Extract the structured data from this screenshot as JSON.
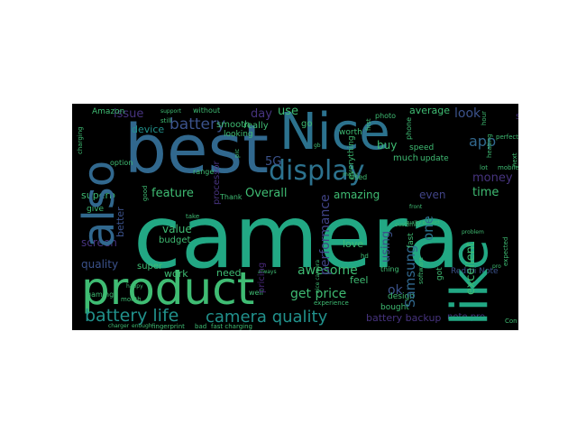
{
  "words": {
    "camera": "camera",
    "best": "best",
    "nice": "Nice",
    "like": "like",
    "product": "product",
    "also": "also",
    "display": "display",
    "battery_life": "battery life",
    "camera_quality": "camera quality",
    "battery": "battery",
    "performance": "performance",
    "awesome": "awesome",
    "get_price": "get price",
    "samsung": "Samsung",
    "excellent": "excellent",
    "money": "money",
    "time": "time",
    "app": "app",
    "look": "look",
    "feature": "feature",
    "overall": "Overall",
    "five_g": "5G",
    "value": "value",
    "quality": "quality",
    "screen": "screen",
    "better": "better",
    "issue": "issue",
    "device": "device",
    "day": "day",
    "use": "use",
    "amazing": "amazing",
    "even": "even",
    "one": "one",
    "using": "using",
    "love": "love",
    "ok": "ok",
    "feel": "feel",
    "battery_backup": "battery backup",
    "note_pro": "note pro",
    "redmi_note": "Redmi Note",
    "buy": "buy",
    "much": "much",
    "got": "got",
    "fast": "fast",
    "need": "need",
    "work": "work",
    "super": "super",
    "budget": "budget",
    "superb": "superb",
    "smooth": "smooth",
    "really": "really",
    "processor": "processor",
    "worth": "worth",
    "go": "go",
    "average": "average",
    "sound": "sound",
    "everything": "everything",
    "phone": "phone",
    "speed": "speed",
    "update": "update",
    "design": "design",
    "bought": "bought",
    "amazon": "Amazon",
    "without": "without",
    "looking": "looking",
    "good": "good",
    "thank": "Thank",
    "give": "give",
    "range": "range",
    "pricing": "pricing",
    "charging": "charging",
    "option": "option",
    "gaming": "gaming",
    "month": "month",
    "well": "well",
    "thing": "thing",
    "experience": "experience",
    "fingerprint": "fingerprint",
    "bad": "bad",
    "fast_charging": "fast charging",
    "heating": "heating",
    "perfect": "perfect",
    "lot": "lot",
    "mobile": "mobile",
    "con": "Con",
    "take": "take",
    "used": "used",
    "many": "many",
    "still": "still",
    "pic": "pic",
    "happy": "happy",
    "always": "always",
    "enough": "enough",
    "charger": "charger",
    "photo": "photo",
    "hour": "hour",
    "hd": "hd",
    "support": "support",
    "problem": "problem",
    "expected": "expected",
    "next": "next",
    "first": "first",
    "software": "software",
    "gb": "gb",
    "front": "front",
    "pro": "pro",
    "nice_camera": "nice camera",
    "customer": "customer",
    "quality_product": "quality product"
  },
  "colors": {
    "background": "#000000",
    "teal": "#22a884",
    "green": "#3fbc73",
    "blue": "#31688e",
    "steel": "#2c728e",
    "aqua": "#1fa187",
    "cyan": "#21918c",
    "indigo": "#3b528b",
    "navy": "#414487",
    "purple": "#482878",
    "violet": "#46337e",
    "deep": "#440154",
    "lime": "#5ec962",
    "yellow": "#addc30",
    "gold": "#d8e219"
  }
}
